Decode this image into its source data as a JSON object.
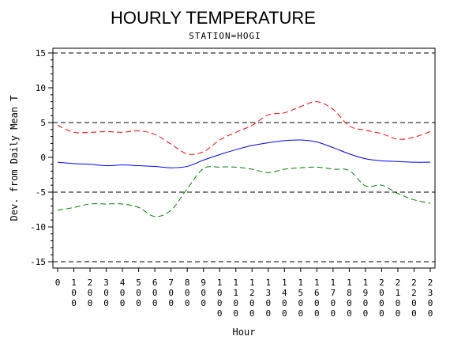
{
  "chart_data": {
    "type": "line",
    "title": "HOURLY TEMPERATURE",
    "subtitle": "STATION=HOGI",
    "xlabel": "Hour",
    "ylabel": "Dev. from Daily Mean T",
    "ylim": [
      -15,
      15
    ],
    "yticks": [
      "-15",
      "-10",
      "-5",
      "0",
      "5",
      "10",
      "15"
    ],
    "ytick_values": [
      -15,
      -10,
      -5,
      0,
      5,
      10,
      15
    ],
    "xlim": [
      0,
      2300
    ],
    "x": [
      0,
      100,
      200,
      300,
      400,
      500,
      600,
      700,
      800,
      900,
      1000,
      1100,
      1200,
      1300,
      1400,
      1500,
      1600,
      1700,
      1800,
      1900,
      2000,
      2100,
      2200,
      2300
    ],
    "xtick_labels": [
      "0",
      "100",
      "200",
      "300",
      "400",
      "500",
      "600",
      "700",
      "800",
      "900",
      "1000",
      "1100",
      "1200",
      "1300",
      "1400",
      "1500",
      "1600",
      "1700",
      "1800",
      "1900",
      "2000",
      "2100",
      "2200",
      "2300"
    ],
    "reference_lines": [
      -15,
      -5,
      5,
      15
    ],
    "grid": false,
    "series": [
      {
        "style": "dashed",
        "color": "#ff0000",
        "values": [
          4.6,
          3.6,
          3.6,
          3.7,
          3.6,
          3.8,
          3.3,
          1.9,
          0.5,
          0.8,
          2.5,
          3.6,
          4.6,
          6.1,
          6.4,
          7.3,
          8.0,
          6.9,
          4.5,
          3.9,
          3.4,
          2.6,
          2.9,
          3.7
        ]
      },
      {
        "style": "solid",
        "color": "#0000ff",
        "values": [
          -0.7,
          -0.9,
          -1.0,
          -1.2,
          -1.1,
          -1.2,
          -1.3,
          -1.5,
          -1.3,
          -0.4,
          0.4,
          1.1,
          1.7,
          2.1,
          2.4,
          2.5,
          2.2,
          1.4,
          0.5,
          -0.2,
          -0.5,
          -0.6,
          -0.7,
          -0.7
        ]
      },
      {
        "style": "dashed",
        "color": "#008000",
        "values": [
          -7.6,
          -7.2,
          -6.7,
          -6.7,
          -6.7,
          -7.2,
          -8.5,
          -7.6,
          -4.5,
          -1.6,
          -1.4,
          -1.4,
          -1.7,
          -2.2,
          -1.7,
          -1.5,
          -1.4,
          -1.7,
          -1.9,
          -4.1,
          -4.0,
          -5.2,
          -6.1,
          -6.6
        ]
      }
    ]
  }
}
